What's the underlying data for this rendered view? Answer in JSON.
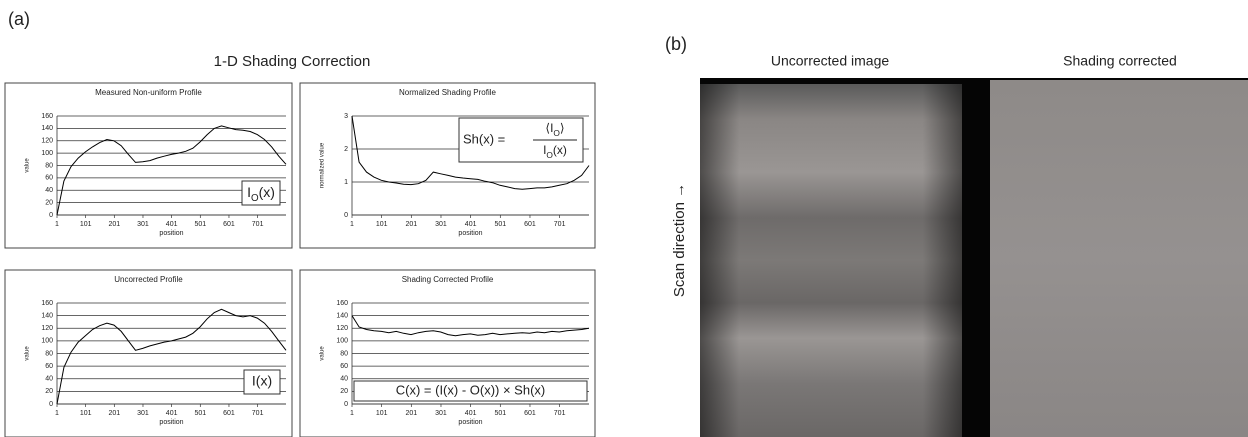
{
  "panel_a": {
    "label": "(a)",
    "title": "1-D Shading Correction"
  },
  "chart_data": [
    {
      "type": "line",
      "title": "Measured Non-uniform Profile",
      "xlabel": "position",
      "ylabel": "value",
      "xlim": [
        1,
        800
      ],
      "xticks": [
        1,
        101,
        201,
        301,
        401,
        501,
        601,
        701
      ],
      "ylim": [
        0,
        160
      ],
      "yticks": [
        0,
        20,
        40,
        60,
        80,
        100,
        120,
        140,
        160
      ],
      "grid": true,
      "x": [
        1,
        25,
        50,
        75,
        100,
        125,
        150,
        175,
        200,
        225,
        250,
        275,
        300,
        325,
        350,
        375,
        400,
        425,
        450,
        475,
        500,
        525,
        550,
        575,
        600,
        625,
        650,
        675,
        700,
        725,
        750,
        775,
        800
      ],
      "series": [
        {
          "color": "#000000",
          "values": [
            0,
            55,
            78,
            92,
            102,
            110,
            117,
            122,
            120,
            112,
            98,
            85,
            86,
            88,
            92,
            95,
            98,
            100,
            103,
            108,
            118,
            130,
            140,
            144,
            141,
            138,
            137,
            135,
            130,
            122,
            110,
            95,
            82
          ]
        }
      ],
      "annotation": [
        "I",
        "O",
        "(x)"
      ]
    },
    {
      "type": "line",
      "title": "Normalized Shading Profile",
      "xlabel": "position",
      "ylabel": "normalized value",
      "xlim": [
        1,
        800
      ],
      "xticks": [
        1,
        101,
        201,
        301,
        401,
        501,
        601,
        701
      ],
      "ylim": [
        0,
        3
      ],
      "yticks": [
        0,
        1,
        2,
        3
      ],
      "grid": true,
      "x": [
        1,
        25,
        50,
        75,
        100,
        125,
        150,
        175,
        200,
        225,
        250,
        275,
        300,
        325,
        350,
        375,
        400,
        425,
        450,
        475,
        500,
        525,
        550,
        575,
        600,
        625,
        650,
        675,
        700,
        725,
        750,
        775,
        800
      ],
      "series": [
        {
          "color": "#000000",
          "values": [
            3,
            1.6,
            1.3,
            1.15,
            1.05,
            1.0,
            0.97,
            0.93,
            0.92,
            0.95,
            1.05,
            1.3,
            1.25,
            1.2,
            1.15,
            1.12,
            1.1,
            1.08,
            1.02,
            0.98,
            0.9,
            0.85,
            0.8,
            0.78,
            0.8,
            0.82,
            0.82,
            0.85,
            0.9,
            0.95,
            1.05,
            1.2,
            1.5
          ]
        }
      ],
      "formula": {
        "lhs": "Sh(x) =",
        "num": [
          "⟨I",
          "O",
          "⟩"
        ],
        "den": [
          "I",
          "O",
          "(x)"
        ]
      }
    },
    {
      "type": "line",
      "title": "Uncorrected Profile",
      "xlabel": "position",
      "ylabel": "value",
      "xlim": [
        1,
        800
      ],
      "xticks": [
        1,
        101,
        201,
        301,
        401,
        501,
        601,
        701
      ],
      "ylim": [
        0,
        160
      ],
      "yticks": [
        0,
        20,
        40,
        60,
        80,
        100,
        120,
        140,
        160
      ],
      "grid": true,
      "x": [
        1,
        25,
        50,
        75,
        100,
        125,
        150,
        175,
        200,
        225,
        250,
        275,
        300,
        325,
        350,
        375,
        400,
        425,
        450,
        475,
        500,
        525,
        550,
        575,
        600,
        625,
        650,
        675,
        700,
        725,
        750,
        775,
        800
      ],
      "series": [
        {
          "color": "#000000",
          "values": [
            0,
            58,
            82,
            98,
            108,
            118,
            124,
            128,
            125,
            115,
            100,
            85,
            88,
            92,
            95,
            98,
            100,
            103,
            106,
            112,
            122,
            135,
            145,
            150,
            145,
            140,
            138,
            140,
            136,
            128,
            115,
            100,
            85
          ]
        }
      ],
      "annotation": [
        "I(x)"
      ]
    },
    {
      "type": "line",
      "title": "Shading Corrected Profile",
      "xlabel": "position",
      "ylabel": "value",
      "xlim": [
        1,
        800
      ],
      "xticks": [
        1,
        101,
        201,
        301,
        401,
        501,
        601,
        701
      ],
      "ylim": [
        0,
        160
      ],
      "yticks": [
        0,
        20,
        40,
        60,
        80,
        100,
        120,
        140,
        160
      ],
      "grid": true,
      "x": [
        1,
        25,
        50,
        75,
        100,
        125,
        150,
        175,
        200,
        225,
        250,
        275,
        300,
        325,
        350,
        375,
        400,
        425,
        450,
        475,
        500,
        525,
        550,
        575,
        600,
        625,
        650,
        675,
        700,
        725,
        750,
        775,
        800
      ],
      "series": [
        {
          "color": "#000000",
          "values": [
            140,
            122,
            118,
            116,
            115,
            113,
            115,
            112,
            110,
            113,
            115,
            116,
            114,
            110,
            108,
            110,
            111,
            109,
            110,
            112,
            110,
            111,
            112,
            113,
            112,
            114,
            113,
            115,
            114,
            116,
            117,
            118,
            120
          ]
        }
      ],
      "annotation": [
        "C(x) = (I(x) - O(x)) × Sh(x)"
      ]
    }
  ],
  "panel_b": {
    "label": "(b)",
    "left_title": "Uncorrected image",
    "right_title": "Shading corrected",
    "axis_label": "Scan direction →"
  }
}
